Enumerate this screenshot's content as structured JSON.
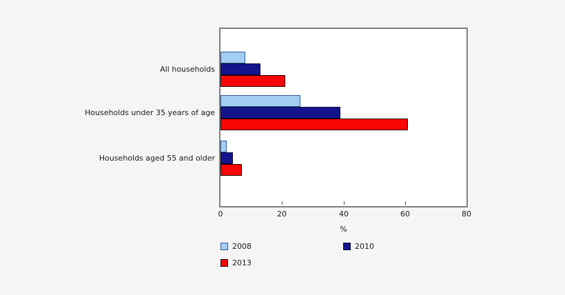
{
  "chart_data": {
    "type": "bar",
    "orientation": "horizontal",
    "title": "",
    "categories": [
      "All households",
      "Households under 35 years of age",
      "Households aged 55 and older"
    ],
    "series": [
      {
        "name": "2008",
        "color": "#a3cef2",
        "border_color": "#2f5b94",
        "values": [
          8,
          26,
          2
        ]
      },
      {
        "name": "2010",
        "color": "#14148c",
        "border_color": "#0a0a38",
        "values": [
          13,
          39,
          4
        ]
      },
      {
        "name": "2013",
        "color": "#f90606",
        "border_color": "#260000",
        "values": [
          21,
          61,
          7
        ]
      }
    ],
    "xlabel": "%",
    "xlim": [
      0,
      80
    ],
    "x_ticks": [
      0,
      20,
      40,
      60,
      80
    ],
    "grid": false,
    "legend_position": "below-axis",
    "legend_rows": [
      [
        "2008",
        "2010"
      ],
      [
        "2013"
      ]
    ]
  },
  "colors": {
    "page_background": "#f5f5f5",
    "plot_background": "#ffffff",
    "plot_border": "#7f7f7f",
    "text": "#1a1a1a"
  }
}
